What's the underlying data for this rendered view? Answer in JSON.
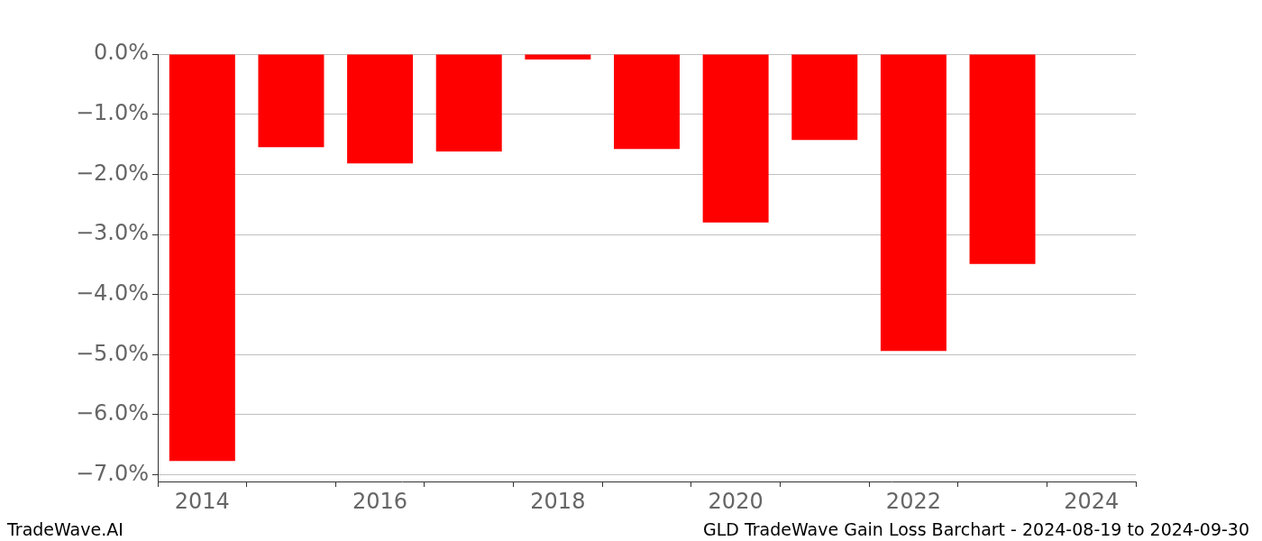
{
  "chart_data": {
    "type": "bar",
    "footer_left": "TradeWave.AI",
    "footer_right": "GLD TradeWave Gain Loss Barchart - 2024-08-19 to 2024-09-30",
    "categories": [
      "2014",
      null,
      "2016",
      null,
      "2018",
      null,
      "2020",
      null,
      "2022",
      null,
      "2024"
    ],
    "values": [
      -6.77,
      -1.55,
      -1.82,
      -1.62,
      -0.09,
      -1.58,
      -2.8,
      -1.43,
      -4.94,
      -3.49,
      null
    ],
    "color": "#ff0000",
    "ylim": [
      -7.11,
      0
    ],
    "yticks": [
      {
        "value": -7,
        "label": "−7.0%"
      },
      {
        "value": -6,
        "label": "−6.0%"
      },
      {
        "value": -5,
        "label": "−5.0%"
      },
      {
        "value": -4,
        "label": "−4.0%"
      },
      {
        "value": -3,
        "label": "−3.0%"
      },
      {
        "value": -2,
        "label": "−2.0%"
      },
      {
        "value": -1,
        "label": "−1.0%"
      },
      {
        "value": 0,
        "label": "0.0%"
      }
    ],
    "grid": true
  }
}
